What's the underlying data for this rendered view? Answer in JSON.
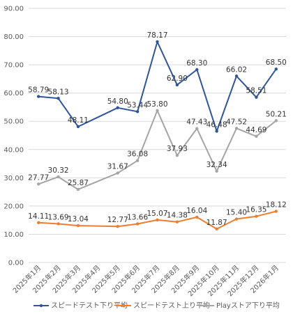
{
  "chart_data": {
    "type": "line",
    "categories": [
      "2025年1月",
      "2025年2月",
      "2025年3月",
      "2025年4月",
      "2025年5月",
      "2025年6月",
      "2025年7月",
      "2025年8月",
      "2025年9月",
      "2025年10月",
      "2025年11月",
      "2025年12月",
      "2026年1月"
    ],
    "y_ticks": [
      "0.00",
      "10.00",
      "20.00",
      "30.00",
      "40.00",
      "50.00",
      "60.00",
      "70.00",
      "80.00",
      "90.00"
    ],
    "ylim": [
      0,
      90
    ],
    "grid": true,
    "legend_position": "bottom",
    "series": [
      {
        "name": "スピードテスト下り平均",
        "color": "#2F5597",
        "values": [
          58.79,
          58.13,
          48.11,
          null,
          54.8,
          53.44,
          78.17,
          62.9,
          68.3,
          46.48,
          66.02,
          58.51,
          68.5
        ],
        "labels": [
          "58.79",
          "58.13",
          "48.11",
          null,
          "54.80",
          "53.44",
          "78.17",
          "62.90",
          "68.30",
          "46.48",
          "66.02",
          "58.51",
          "68.50"
        ]
      },
      {
        "name": "スピードテスト上り平均",
        "color": "#ED7D31",
        "values": [
          14.11,
          13.69,
          13.04,
          null,
          12.77,
          13.66,
          15.07,
          14.38,
          16.04,
          11.87,
          15.4,
          16.35,
          18.12
        ],
        "labels": [
          "14.11",
          "13.69",
          "13.04",
          null,
          "12.77",
          "13.66",
          "15.07",
          "14.38",
          "16.04",
          "11.87",
          "15.40",
          "16.35",
          "18.12"
        ]
      },
      {
        "name": "Playストア下り平均",
        "color": "#A5A5A5",
        "values": [
          27.77,
          30.32,
          25.87,
          null,
          31.67,
          36.08,
          53.8,
          37.93,
          47.43,
          32.34,
          47.52,
          44.69,
          50.21
        ],
        "labels": [
          "27.77",
          "30.32",
          "25.87",
          null,
          "31.67",
          "36.08",
          "53.80",
          "37.93",
          "47.43",
          "32.34",
          "47.52",
          "44.69",
          "50.21"
        ]
      }
    ]
  }
}
